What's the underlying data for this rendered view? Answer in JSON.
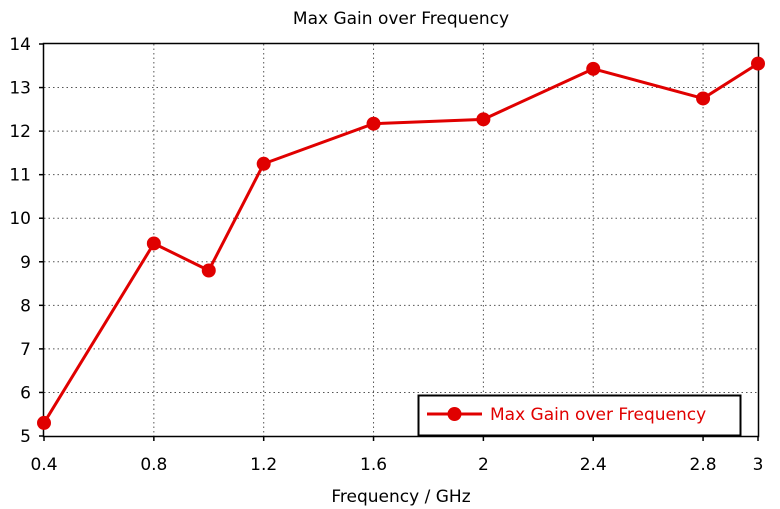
{
  "chart_data": {
    "type": "line",
    "title": "Max Gain over Frequency",
    "xlabel": "Frequency / GHz",
    "ylabel": "",
    "xlim": [
      0.4,
      3.0
    ],
    "ylim": [
      5,
      14
    ],
    "x_ticks": [
      0.4,
      0.8,
      1.2,
      1.6,
      2.0,
      2.4,
      2.8,
      3.0
    ],
    "x_tick_labels": [
      "0.4",
      "0.8",
      "1.2",
      "1.6",
      "2",
      "2.4",
      "2.8",
      "3"
    ],
    "y_ticks": [
      5,
      6,
      7,
      8,
      9,
      10,
      11,
      12,
      13,
      14
    ],
    "y_tick_labels": [
      "5",
      "6",
      "7",
      "8",
      "9",
      "10",
      "11",
      "12",
      "13",
      "14"
    ],
    "x_grid": [
      0.8,
      1.2,
      1.6,
      2.0,
      2.4,
      2.8
    ],
    "y_grid": [
      6,
      7,
      8,
      9,
      10,
      11,
      12,
      13
    ],
    "grid": true,
    "legend_position": "bottom-right",
    "series": [
      {
        "name": "Max Gain over Frequency",
        "color": "#e00000",
        "x": [
          0.4,
          0.8,
          1.0,
          1.2,
          1.6,
          2.0,
          2.4,
          2.8,
          3.0
        ],
        "y": [
          5.3,
          9.42,
          8.8,
          11.25,
          12.17,
          12.27,
          13.43,
          12.75,
          13.55
        ]
      }
    ]
  }
}
